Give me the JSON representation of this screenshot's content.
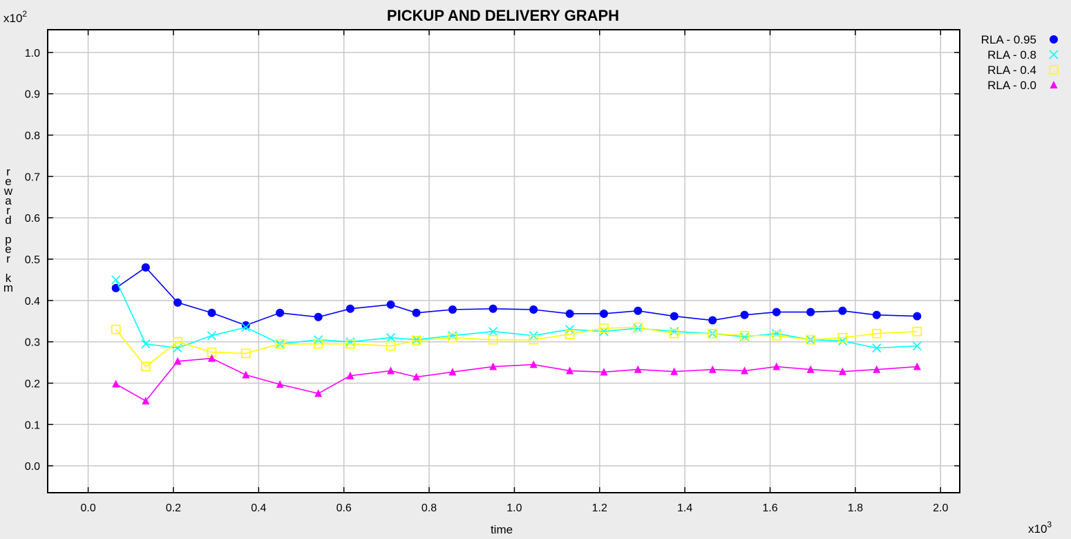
{
  "chart_data": {
    "type": "line",
    "title": "PICKUP AND DELIVERY GRAPH",
    "xlabel": "time",
    "ylabel": "reward per km",
    "x_multiplier": "x10^3",
    "y_multiplier": "x10^2",
    "xlim": [
      -0.095,
      2.045
    ],
    "ylim": [
      -0.065,
      1.055
    ],
    "x_ticks": [
      0.0,
      0.2,
      0.4,
      0.6,
      0.8,
      1.0,
      1.2,
      1.4,
      1.6,
      1.8,
      2.0
    ],
    "x_tick_labels": [
      "0.0",
      "0.2",
      "0.4",
      "0.6",
      "0.8",
      "1.0",
      "1.2",
      "1.4",
      "1.6",
      "1.8",
      "2.0"
    ],
    "y_ticks": [
      0.0,
      0.1,
      0.2,
      0.3,
      0.4,
      0.5,
      0.6,
      0.7,
      0.8,
      0.9,
      1.0
    ],
    "y_tick_labels": [
      "0.0",
      "0.1",
      "0.2",
      "0.3",
      "0.4",
      "0.5",
      "0.6",
      "0.7",
      "0.8",
      "0.9",
      "1.0"
    ],
    "grid": true,
    "legend_position": "outside-top-right",
    "x": [
      0.065,
      0.135,
      0.21,
      0.29,
      0.37,
      0.45,
      0.54,
      0.615,
      0.71,
      0.77,
      0.855,
      0.95,
      1.045,
      1.13,
      1.21,
      1.29,
      1.375,
      1.465,
      1.54,
      1.615,
      1.695,
      1.77,
      1.85,
      1.945
    ],
    "series": [
      {
        "name": "RLA - 0.95",
        "color": "#0000ff",
        "marker": "filled-circle",
        "values": [
          0.43,
          0.48,
          0.395,
          0.37,
          0.34,
          0.37,
          0.36,
          0.38,
          0.39,
          0.37,
          0.378,
          0.38,
          0.378,
          0.368,
          0.368,
          0.375,
          0.362,
          0.352,
          0.365,
          0.372,
          0.372,
          0.375,
          0.365,
          0.362
        ]
      },
      {
        "name": "RLA - 0.8",
        "color": "#00ffff",
        "marker": "cross",
        "values": [
          0.45,
          0.295,
          0.285,
          0.315,
          0.335,
          0.295,
          0.305,
          0.3,
          0.31,
          0.305,
          0.315,
          0.325,
          0.315,
          0.33,
          0.325,
          0.333,
          0.325,
          0.32,
          0.312,
          0.32,
          0.305,
          0.302,
          0.285,
          0.29
        ]
      },
      {
        "name": "RLA - 0.4",
        "color": "#ffff00",
        "marker": "open-square",
        "values": [
          0.33,
          0.24,
          0.3,
          0.275,
          0.272,
          0.295,
          0.295,
          0.295,
          0.29,
          0.303,
          0.31,
          0.305,
          0.305,
          0.318,
          0.333,
          0.335,
          0.32,
          0.32,
          0.315,
          0.315,
          0.305,
          0.31,
          0.32,
          0.325
        ]
      },
      {
        "name": "RLA - 0.0",
        "color": "#ff00ff",
        "marker": "filled-triangle",
        "values": [
          0.198,
          0.157,
          0.253,
          0.26,
          0.22,
          0.197,
          0.175,
          0.218,
          0.23,
          0.215,
          0.227,
          0.24,
          0.245,
          0.23,
          0.227,
          0.233,
          0.228,
          0.233,
          0.23,
          0.24,
          0.233,
          0.228,
          0.233,
          0.24
        ]
      }
    ]
  }
}
